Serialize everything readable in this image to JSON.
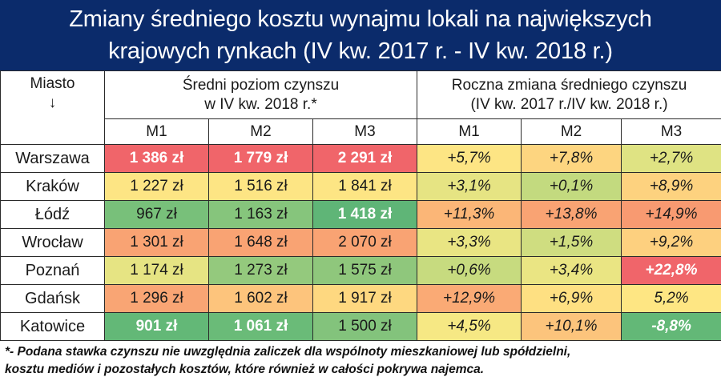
{
  "title": {
    "line1": "Zmiany średniego kosztu wynajmu lokali na największych",
    "line2": "krajowych rynkach (IV kw. 2017 r. - IV kw. 2018 r.)"
  },
  "header": {
    "city_label": "Miasto",
    "city_arrow": "↓",
    "group1_line1": "Średni poziom czynszu",
    "group1_line2": "w IV kw. 2018 r.*",
    "group2_line1": "Roczna zmiana średniego czynszu",
    "group2_line2": "(IV kw. 2017 r./IV kw. 2018 r.)",
    "sub": [
      "M1",
      "M2",
      "M3",
      "M1",
      "M2",
      "M3"
    ]
  },
  "rows": [
    {
      "city": "Warszawa",
      "cells": [
        {
          "text": "1 386 zł",
          "bg": "#f0656a",
          "hl": true
        },
        {
          "text": "1 779 zł",
          "bg": "#f0656a",
          "hl": true
        },
        {
          "text": "2 291 zł",
          "bg": "#f0656a",
          "hl": true
        },
        {
          "text": "+5,7%",
          "bg": "#fde584",
          "hl": false
        },
        {
          "text": "+7,8%",
          "bg": "#fdd580",
          "hl": false
        },
        {
          "text": "+2,7%",
          "bg": "#dfe383",
          "hl": false
        }
      ]
    },
    {
      "city": "Kraków",
      "cells": [
        {
          "text": "1 227 zł",
          "bg": "#fde584",
          "hl": false
        },
        {
          "text": "1 516 zł",
          "bg": "#fde584",
          "hl": false
        },
        {
          "text": "1 841 zł",
          "bg": "#fde584",
          "hl": false
        },
        {
          "text": "+3,1%",
          "bg": "#e6e483",
          "hl": false
        },
        {
          "text": "+0,1%",
          "bg": "#c3da7f",
          "hl": false
        },
        {
          "text": "+8,9%",
          "bg": "#fdd27f",
          "hl": false
        }
      ]
    },
    {
      "city": "Łódź",
      "cells": [
        {
          "text": "967 zł",
          "bg": "#78c07a",
          "hl": false
        },
        {
          "text": "1 163 zł",
          "bg": "#86c57c",
          "hl": false
        },
        {
          "text": "1 418 zł",
          "bg": "#5fb577",
          "hl": true
        },
        {
          "text": "+11,3%",
          "bg": "#fbb677",
          "hl": false
        },
        {
          "text": "+13,8%",
          "bg": "#f9a373",
          "hl": false
        },
        {
          "text": "+14,9%",
          "bg": "#f89a71",
          "hl": false
        }
      ]
    },
    {
      "city": "Wrocław",
      "cells": [
        {
          "text": "1 301 zł",
          "bg": "#f9a373",
          "hl": false
        },
        {
          "text": "1 648 zł",
          "bg": "#f9a373",
          "hl": false
        },
        {
          "text": "2 070 zł",
          "bg": "#f9a373",
          "hl": false
        },
        {
          "text": "+3,3%",
          "bg": "#e9e583",
          "hl": false
        },
        {
          "text": "+1,5%",
          "bg": "#cfdd80",
          "hl": false
        },
        {
          "text": "+9,2%",
          "bg": "#fdd07f",
          "hl": false
        }
      ]
    },
    {
      "city": "Poznań",
      "cells": [
        {
          "text": "1 174 zł",
          "bg": "#e6e483",
          "hl": false
        },
        {
          "text": "1 273 zł",
          "bg": "#94c97d",
          "hl": false
        },
        {
          "text": "1 575 zł",
          "bg": "#8fc77c",
          "hl": false
        },
        {
          "text": "+0,6%",
          "bg": "#c7db7f",
          "hl": false
        },
        {
          "text": "+3,4%",
          "bg": "#eae583",
          "hl": false
        },
        {
          "text": "+22,8%",
          "bg": "#f0656a",
          "hl": true
        }
      ]
    },
    {
      "city": "Gdańsk",
      "cells": [
        {
          "text": "1 296 zł",
          "bg": "#f9a574",
          "hl": false
        },
        {
          "text": "1 602 zł",
          "bg": "#fdc47c",
          "hl": false
        },
        {
          "text": "1 917 zł",
          "bg": "#fed880",
          "hl": false
        },
        {
          "text": "+12,9%",
          "bg": "#faaa75",
          "hl": false
        },
        {
          "text": "+6,9%",
          "bg": "#fee082",
          "hl": false
        },
        {
          "text": "5,2%",
          "bg": "#fee683",
          "hl": false
        }
      ]
    },
    {
      "city": "Katowice",
      "cells": [
        {
          "text": "901 zł",
          "bg": "#63b877",
          "hl": true
        },
        {
          "text": "1 061 zł",
          "bg": "#6abb78",
          "hl": true
        },
        {
          "text": "1 500 zł",
          "bg": "#83c37c",
          "hl": false
        },
        {
          "text": "+4,5%",
          "bg": "#f6e884",
          "hl": false
        },
        {
          "text": "+10,1%",
          "bg": "#fcc47c",
          "hl": false
        },
        {
          "text": "-8,8%",
          "bg": "#63b877",
          "hl": true
        }
      ]
    }
  ],
  "footnote": {
    "line1": "*- Podana stawka czynszu nie uwzględnia zaliczek dla wspólnoty mieszkaniowej lub spółdzielni,",
    "line2": "kosztu mediów i pozostałych kosztów, które również w całości pokrywa najemca."
  },
  "chart_data": {
    "type": "table",
    "title": "Zmiany średniego kosztu wynajmu lokali na największych krajowych rynkach (IV kw. 2017 r. - IV kw. 2018 r.)",
    "columns": [
      "Miasto",
      "Średni czynsz M1 (zł)",
      "Średni czynsz M2 (zł)",
      "Średni czynsz M3 (zł)",
      "Zmiana roczna M1 (%)",
      "Zmiana roczna M2 (%)",
      "Zmiana roczna M3 (%)"
    ],
    "categories": [
      "Warszawa",
      "Kraków",
      "Łódź",
      "Wrocław",
      "Poznań",
      "Gdańsk",
      "Katowice"
    ],
    "series": [
      {
        "name": "Średni czynsz M1 (zł)",
        "values": [
          1386,
          1227,
          967,
          1301,
          1174,
          1296,
          901
        ]
      },
      {
        "name": "Średni czynsz M2 (zł)",
        "values": [
          1779,
          1516,
          1163,
          1648,
          1273,
          1602,
          1061
        ]
      },
      {
        "name": "Średni czynsz M3 (zł)",
        "values": [
          2291,
          1841,
          1418,
          2070,
          1575,
          1917,
          1500
        ]
      },
      {
        "name": "Zmiana roczna M1 (%)",
        "values": [
          5.7,
          3.1,
          11.3,
          3.3,
          0.6,
          12.9,
          4.5
        ]
      },
      {
        "name": "Zmiana roczna M2 (%)",
        "values": [
          7.8,
          0.1,
          13.8,
          1.5,
          3.4,
          6.9,
          10.1
        ]
      },
      {
        "name": "Zmiana roczna M3 (%)",
        "values": [
          2.7,
          8.9,
          14.9,
          9.2,
          22.8,
          5.2,
          -8.8
        ]
      }
    ],
    "note": "*- Podana stawka czynszu nie uwzględnia zaliczek dla wspólnoty mieszkaniowej lub spółdzielni, kosztu mediów i pozostałych kosztów, które również w całości pokrywa najemca."
  }
}
